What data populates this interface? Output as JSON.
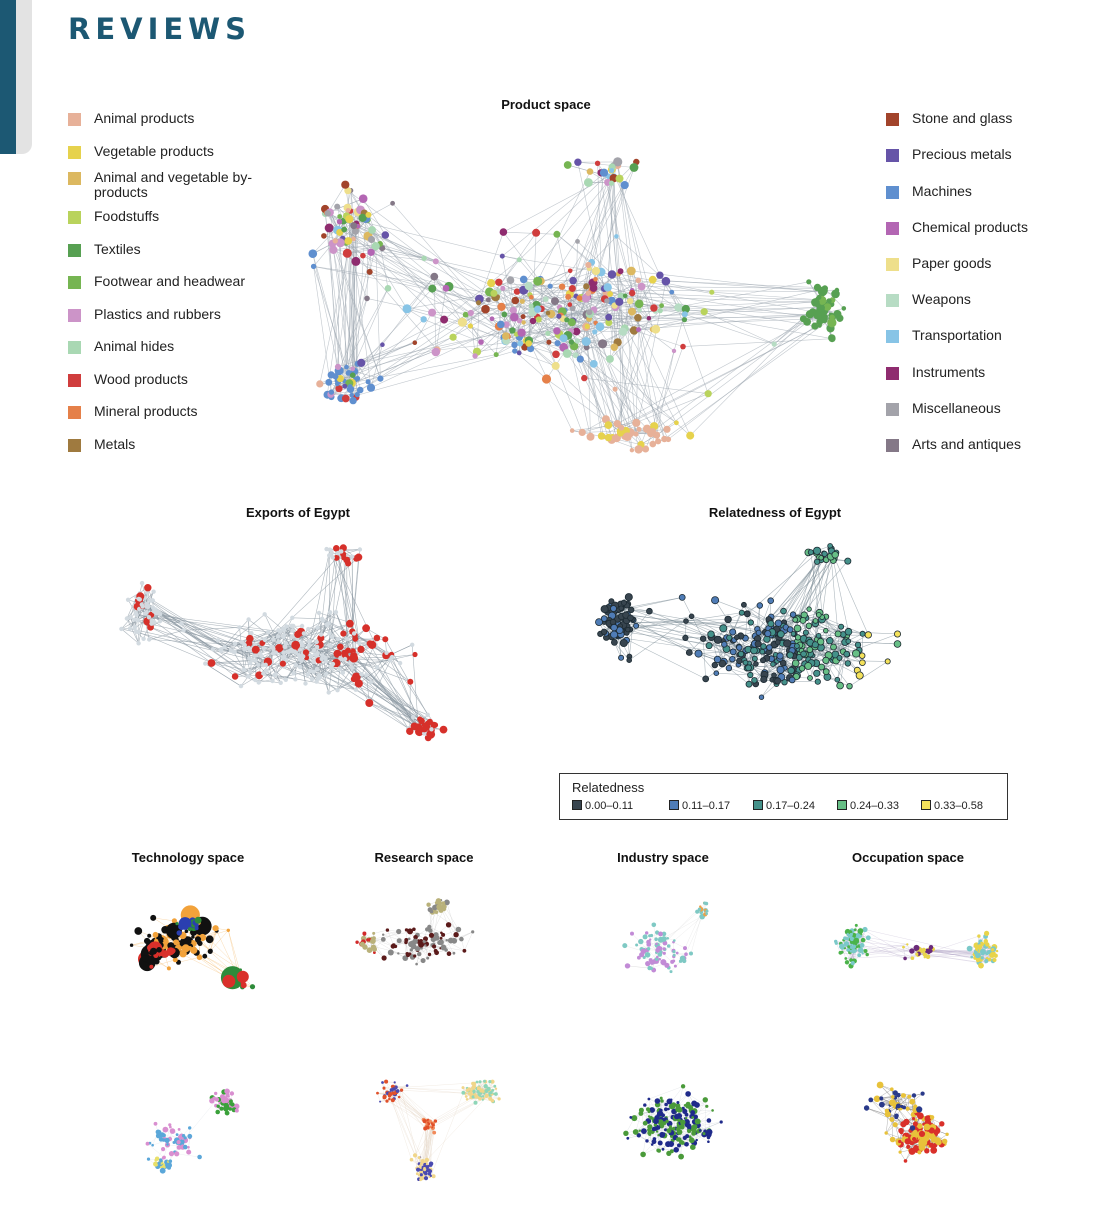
{
  "header": {
    "title": "REVIEWS"
  },
  "legend_left": [
    {
      "label": "Animal products",
      "color": "#e7b199"
    },
    {
      "label": "Vegetable products",
      "color": "#e6d24d"
    },
    {
      "label": "Animal and vegetable by-products",
      "color": "#dcb860"
    },
    {
      "label": "Foodstuffs",
      "color": "#b9d35c"
    },
    {
      "label": "Textiles",
      "color": "#57a052"
    },
    {
      "label": "Footwear and headwear",
      "color": "#76b552"
    },
    {
      "label": "Plastics and rubbers",
      "color": "#cc94c8"
    },
    {
      "label": "Animal hides",
      "color": "#a9d8b3"
    },
    {
      "label": "Wood products",
      "color": "#d03d3d"
    },
    {
      "label": "Mineral products",
      "color": "#e58049"
    },
    {
      "label": "Metals",
      "color": "#9f7a3f"
    }
  ],
  "legend_right": [
    {
      "label": "Stone and glass",
      "color": "#a2442b"
    },
    {
      "label": "Precious metals",
      "color": "#6654a8"
    },
    {
      "label": "Machines",
      "color": "#5f8fcf"
    },
    {
      "label": "Chemical products",
      "color": "#b366b3"
    },
    {
      "label": "Paper goods",
      "color": "#eedf8b"
    },
    {
      "label": "Weapons",
      "color": "#b7dcc4"
    },
    {
      "label": "Transportation",
      "color": "#87c4e6"
    },
    {
      "label": "Instruments",
      "color": "#8f2c6f"
    },
    {
      "label": "Miscellaneous",
      "color": "#a3a3aa"
    },
    {
      "label": "Arts and antiques",
      "color": "#847887"
    }
  ],
  "panels": {
    "product_space": "Product space",
    "exports_egypt": "Exports of Egypt",
    "relatedness_egypt": "Relatedness of Egypt",
    "technology_space": "Technology space",
    "research_space": "Research space",
    "industry_space": "Industry space",
    "occupation_space": "Occupation space"
  },
  "relatedness_legend": {
    "title": "Relatedness",
    "bins": [
      {
        "label": "0.00–0.11",
        "color": "#38454f"
      },
      {
        "label": "0.11–0.17",
        "color": "#4f7cb6"
      },
      {
        "label": "0.17–0.24",
        "color": "#44918a"
      },
      {
        "label": "0.24–0.33",
        "color": "#67bf86"
      },
      {
        "label": "0.33–0.58",
        "color": "#f4e15b"
      }
    ]
  },
  "exports_colors": {
    "exported": "#d6302a",
    "other": "#d2dae0",
    "edge": "#8c99a3"
  },
  "small_palettes": {
    "technology": [
      "#f2a23a",
      "#111111",
      "#d9302a",
      "#2e8b3a",
      "#2a3fb0",
      "#f5e31c"
    ],
    "research": [
      "#5b1a1a",
      "#888888",
      "#b9b17a",
      "#d22a2a",
      "#6b2f80",
      "#c8c8c8"
    ],
    "industry": [
      "#c28bd6",
      "#7fc9c4",
      "#e9a24b",
      "#f08fa5",
      "#9fd36b",
      "#8aa0d9"
    ],
    "occupation": [
      "#4bb34a",
      "#7bc9c9",
      "#e8d44a",
      "#6a2a7a",
      "#e0402d",
      "#f28a2a"
    ],
    "tech_bottom": [
      "#3aa13a",
      "#d98fd0",
      "#5ba7d9",
      "#e8e06a",
      "#b07ad9",
      "#7ac2b0"
    ],
    "research_bottom": [
      "#8fd6b8",
      "#f0d68a",
      "#4a4ab0",
      "#e0502a",
      "#f28a5a",
      "#e9e2a8"
    ],
    "industry_bottom": [
      "#1f2a8a",
      "#4a9a3a",
      "#d9302a",
      "#e8c23a",
      "#7a3aa0",
      "#cccccc"
    ],
    "occupation_bottom": [
      "#d9302a",
      "#e8c23a",
      "#2a3a8a",
      "#3a9a3a",
      "#8acde0",
      "#a05a2a"
    ]
  }
}
